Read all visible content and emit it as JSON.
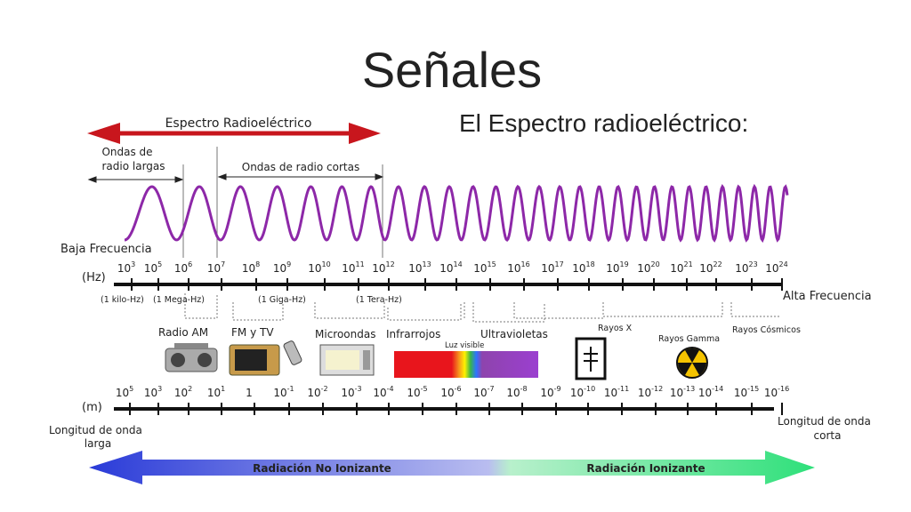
{
  "title": "Señales",
  "subtitle": "El Espectro radioeléctrico:",
  "radio_spectrum": "Espectro Radioeléctrico",
  "long_waves": [
    "Ondas de",
    "radio largas"
  ],
  "short_waves": "Ondas de radio cortas",
  "low_freq": "Baja Frecuencia",
  "high_freq": "Alta Frecuencia",
  "freq_unit": "(Hz)",
  "freq_ticks": [
    {
      "base": "10",
      "exp": "3"
    },
    {
      "base": "10",
      "exp": "5"
    },
    {
      "base": "10",
      "exp": "6"
    },
    {
      "base": "10",
      "exp": "7"
    },
    {
      "base": "10",
      "exp": "8"
    },
    {
      "base": "10",
      "exp": "9"
    },
    {
      "base": "10",
      "exp": "10"
    },
    {
      "base": "10",
      "exp": "11"
    },
    {
      "base": "10",
      "exp": "12"
    },
    {
      "base": "10",
      "exp": "13"
    },
    {
      "base": "10",
      "exp": "14"
    },
    {
      "base": "10",
      "exp": "15"
    },
    {
      "base": "10",
      "exp": "16"
    },
    {
      "base": "10",
      "exp": "17"
    },
    {
      "base": "10",
      "exp": "18"
    },
    {
      "base": "10",
      "exp": "19"
    },
    {
      "base": "10",
      "exp": "20"
    },
    {
      "base": "10",
      "exp": "21"
    },
    {
      "base": "10",
      "exp": "22"
    },
    {
      "base": "10",
      "exp": "23"
    },
    {
      "base": "10",
      "exp": "24"
    }
  ],
  "freq_notes": [
    "(1 kilo-Hz)",
    "(1 Mega-Hz)",
    "(1 Giga-Hz)",
    "(1 Tera-Hz)"
  ],
  "bands": [
    "Radio AM",
    "FM y TV",
    "Microondas",
    "Infrarrojos",
    "Luz visible",
    "Ultravioletas",
    "Rayos X",
    "Rayos Gamma",
    "Rayos Cósmicos"
  ],
  "wave_unit": "(m)",
  "wave_ticks": [
    {
      "base": "10",
      "exp": "5"
    },
    {
      "base": "10",
      "exp": "3"
    },
    {
      "base": "10",
      "exp": "2"
    },
    {
      "base": "10",
      "exp": "1"
    },
    {
      "base": "1",
      "exp": ""
    },
    {
      "base": "10",
      "exp": "-1"
    },
    {
      "base": "10",
      "exp": "-2"
    },
    {
      "base": "10",
      "exp": "-3"
    },
    {
      "base": "10",
      "exp": "-4"
    },
    {
      "base": "10",
      "exp": "-5"
    },
    {
      "base": "10",
      "exp": "-6"
    },
    {
      "base": "10",
      "exp": "-7"
    },
    {
      "base": "10",
      "exp": "-8"
    },
    {
      "base": "10",
      "exp": "-9"
    },
    {
      "base": "10",
      "exp": "-10"
    },
    {
      "base": "10",
      "exp": "-11"
    },
    {
      "base": "10",
      "exp": "-12"
    },
    {
      "base": "10",
      "exp": "-13"
    },
    {
      "base": "10",
      "exp": "-14"
    },
    {
      "base": "10",
      "exp": "-15"
    },
    {
      "base": "10",
      "exp": "-16"
    }
  ],
  "long_wavelength": [
    "Longitud de onda",
    "larga"
  ],
  "short_wavelength": [
    "Longitud de onda",
    "corta"
  ],
  "non_ionizing": "Radiación No Ionizante",
  "ionizing": "Radiación Ionizante"
}
